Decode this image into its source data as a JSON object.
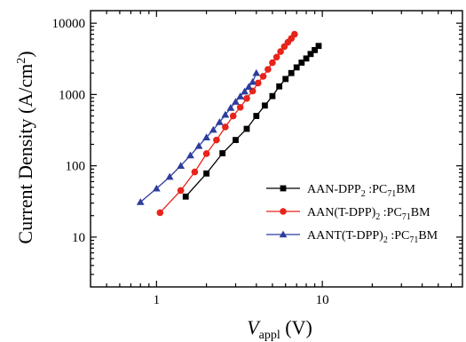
{
  "chart_data": {
    "type": "scatter",
    "scale": {
      "x": "log",
      "y": "log"
    },
    "xlim": [
      0.4,
      70
    ],
    "ylim": [
      2,
      15000
    ],
    "xticks": [
      1,
      10
    ],
    "xtick_labels": [
      "1",
      "10"
    ],
    "yticks": [
      10,
      100,
      1000,
      10000
    ],
    "ytick_labels": [
      "10",
      "100",
      "1000",
      "10000"
    ],
    "xlabel": {
      "main": "V",
      "sub": "appl",
      "unit": " (V)"
    },
    "ylabel": {
      "main": "Current Density (A/cm",
      "sup": "2",
      "end": ")"
    },
    "legend_position": "right",
    "grid": false,
    "series": [
      {
        "name": {
          "a": "AAN-DPP",
          "s1": "2",
          "b": " :PC",
          "s2": "71",
          "c": "BM"
        },
        "color": "#000000",
        "marker": "square",
        "points": [
          [
            1.5,
            37
          ],
          [
            2.0,
            78
          ],
          [
            2.5,
            150
          ],
          [
            3.0,
            230
          ],
          [
            3.5,
            330
          ],
          [
            4.0,
            500
          ],
          [
            4.5,
            700
          ],
          [
            5.0,
            950
          ],
          [
            5.5,
            1300
          ],
          [
            6.0,
            1650
          ],
          [
            6.5,
            2000
          ],
          [
            7.0,
            2400
          ],
          [
            7.5,
            2800
          ],
          [
            8.0,
            3200
          ],
          [
            8.5,
            3700
          ],
          [
            9.0,
            4200
          ],
          [
            9.5,
            4800
          ]
        ]
      },
      {
        "name": {
          "a": "AAN(T-DPP)",
          "s1": "2",
          "b": " :PC",
          "s2": "71",
          "c": "BM"
        },
        "color": "#e8231a",
        "marker": "circle",
        "points": [
          [
            1.05,
            22
          ],
          [
            1.4,
            45
          ],
          [
            1.7,
            82
          ],
          [
            2.0,
            148
          ],
          [
            2.3,
            230
          ],
          [
            2.6,
            350
          ],
          [
            2.9,
            500
          ],
          [
            3.2,
            660
          ],
          [
            3.5,
            880
          ],
          [
            3.8,
            1120
          ],
          [
            4.1,
            1450
          ],
          [
            4.4,
            1800
          ],
          [
            4.7,
            2250
          ],
          [
            5.0,
            2800
          ],
          [
            5.3,
            3350
          ],
          [
            5.6,
            4000
          ],
          [
            5.9,
            4700
          ],
          [
            6.2,
            5400
          ],
          [
            6.5,
            6100
          ],
          [
            6.8,
            7000
          ]
        ]
      },
      {
        "name": {
          "a": "AANT(T-DPP)",
          "s1": "2",
          "b": " :PC",
          "s2": "71",
          "c": "BM"
        },
        "color": "#2e3d9c",
        "marker": "triangle",
        "points": [
          [
            0.8,
            31
          ],
          [
            1.0,
            48
          ],
          [
            1.2,
            70
          ],
          [
            1.4,
            100
          ],
          [
            1.6,
            140
          ],
          [
            1.8,
            190
          ],
          [
            2.0,
            250
          ],
          [
            2.2,
            320
          ],
          [
            2.4,
            410
          ],
          [
            2.6,
            520
          ],
          [
            2.8,
            650
          ],
          [
            3.0,
            790
          ],
          [
            3.2,
            940
          ],
          [
            3.4,
            1100
          ],
          [
            3.6,
            1280
          ],
          [
            3.8,
            1500
          ],
          [
            4.0,
            2000
          ]
        ]
      }
    ]
  }
}
